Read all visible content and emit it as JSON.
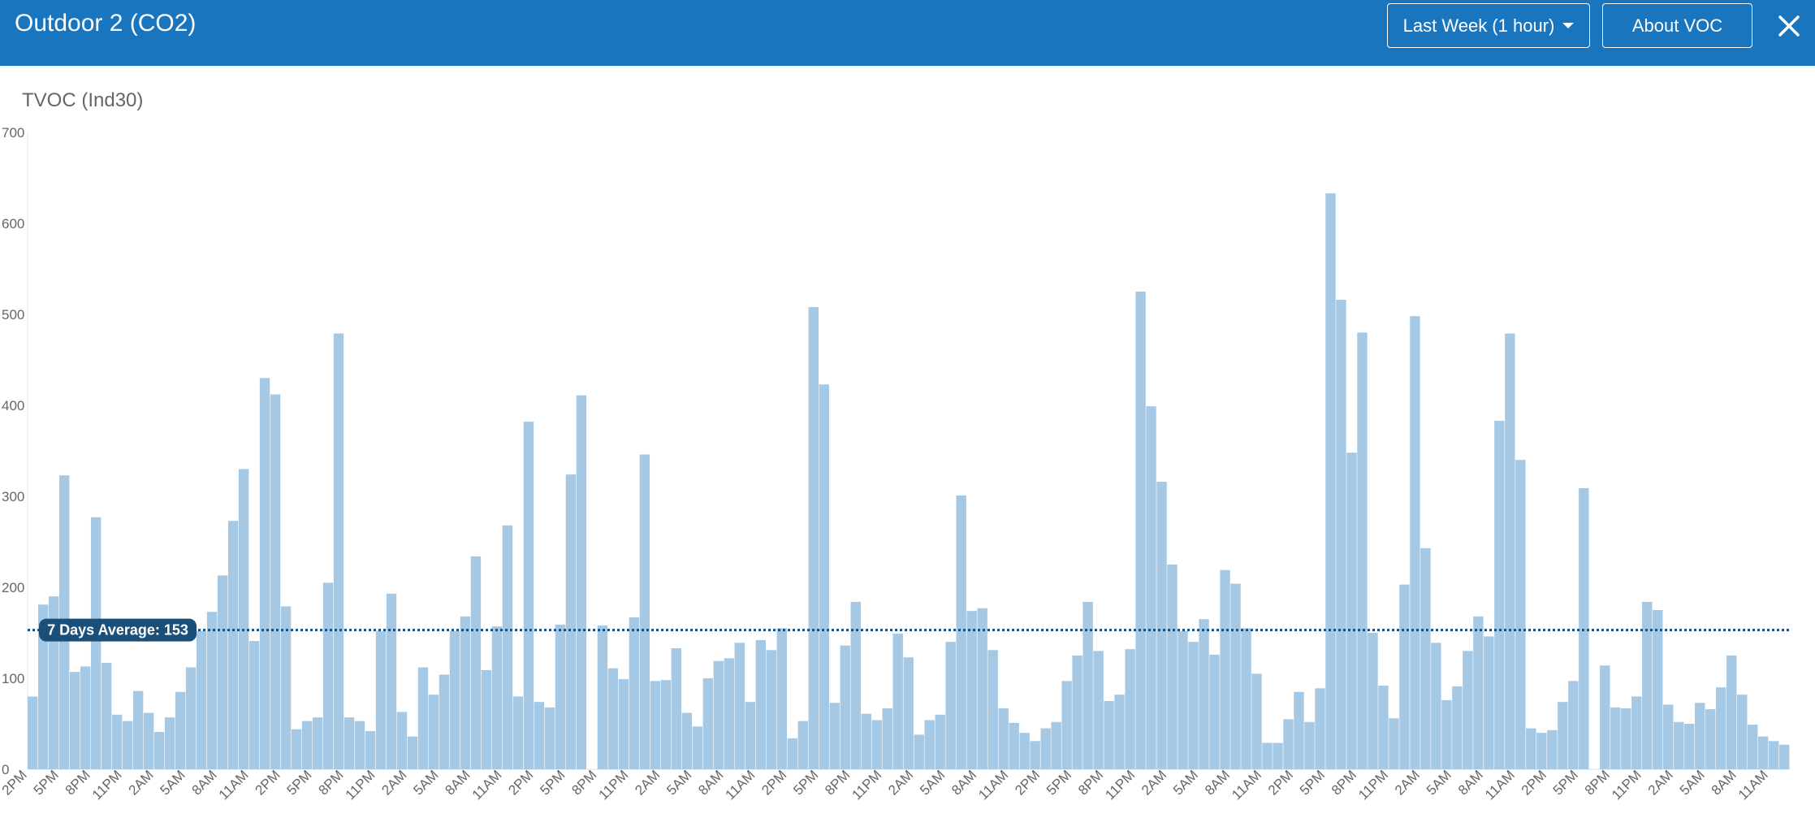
{
  "header": {
    "title": "Outdoor 2 (CO2)",
    "range_label": "Last Week (1 hour)",
    "about_label": "About VOC"
  },
  "colors": {
    "header_bg": "#1a75bf",
    "bar": "#a5c8e4",
    "average_line": "#1a4f7a",
    "average_badge": "#1a4f7a"
  },
  "chart_data": {
    "type": "bar",
    "title": "TVOC (Ind30)",
    "ylim": [
      0,
      700
    ],
    "yticks": [
      0,
      100,
      200,
      300,
      400,
      500,
      600,
      700
    ],
    "grid": false,
    "xtick_labels": [
      "2PM",
      "5PM",
      "8PM",
      "11PM",
      "2AM",
      "5AM",
      "8AM",
      "11AM",
      "2PM",
      "5PM",
      "8PM",
      "11PM",
      "2AM",
      "5AM",
      "8AM",
      "11AM",
      "2PM",
      "5PM",
      "8PM",
      "11PM",
      "2AM",
      "5AM",
      "8AM",
      "11AM",
      "2PM",
      "5PM",
      "8PM",
      "11PM",
      "2AM",
      "5AM",
      "8AM",
      "11AM",
      "2PM",
      "5PM",
      "8PM",
      "11PM",
      "2AM",
      "5AM",
      "8AM",
      "11AM",
      "2PM",
      "5PM",
      "8PM",
      "11PM",
      "2AM",
      "5AM",
      "8AM",
      "11AM",
      "2PM",
      "5PM",
      "8PM",
      "11PM",
      "2AM",
      "5AM",
      "8AM",
      "11AM"
    ],
    "average": {
      "label": "7 Days Average: 153",
      "value": 153
    },
    "values": [
      80,
      181,
      190,
      323,
      107,
      113,
      277,
      117,
      60,
      53,
      86,
      62,
      41,
      57,
      85,
      112,
      152,
      173,
      213,
      273,
      330,
      141,
      430,
      412,
      179,
      44,
      53,
      57,
      205,
      479,
      57,
      53,
      42,
      152,
      193,
      63,
      36,
      112,
      82,
      104,
      152,
      168,
      234,
      109,
      157,
      268,
      80,
      382,
      74,
      68,
      159,
      324,
      411,
      0,
      158,
      111,
      99,
      167,
      346,
      97,
      98,
      133,
      62,
      47,
      100,
      119,
      122,
      139,
      74,
      142,
      131,
      155,
      34,
      53,
      508,
      423,
      73,
      136,
      184,
      61,
      54,
      67,
      149,
      123,
      38,
      54,
      60,
      140,
      301,
      174,
      177,
      131,
      67,
      51,
      40,
      31,
      45,
      52,
      97,
      125,
      184,
      130,
      75,
      82,
      132,
      525,
      399,
      316,
      225,
      152,
      140,
      165,
      126,
      219,
      204,
      155,
      105,
      29,
      29,
      55,
      85,
      52,
      89,
      633,
      516,
      348,
      480,
      150,
      92,
      56,
      203,
      498,
      243,
      139,
      76,
      91,
      130,
      168,
      146,
      383,
      479,
      340,
      45,
      40,
      43,
      74,
      97,
      309,
      0,
      114,
      68,
      67,
      80,
      184,
      175,
      71,
      52,
      50,
      73,
      66,
      90,
      125,
      82,
      49,
      36,
      31,
      27
    ]
  }
}
